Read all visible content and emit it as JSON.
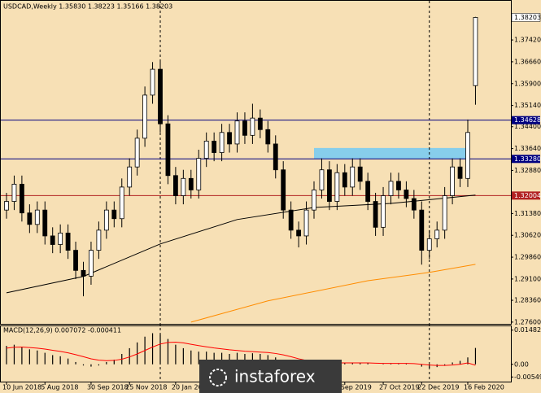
{
  "chart_data": {
    "type": "candlestick",
    "title": "USDCAD,Weekly  1.35830 1.38223 1.35166 1.38203",
    "ylim": [
      1.2754,
      1.3881
    ],
    "yticks": [
      {
        "value": 1.3742,
        "label": "1.37420"
      },
      {
        "value": 1.3666,
        "label": "1.36660"
      },
      {
        "value": 1.359,
        "label": "1.35900"
      },
      {
        "value": 1.3514,
        "label": "1.35140"
      },
      {
        "value": 1.344,
        "label": "1.34400"
      },
      {
        "value": 1.3364,
        "label": "1.33640"
      },
      {
        "value": 1.3288,
        "label": "1.32880"
      },
      {
        "value": 1.3138,
        "label": "1.31380"
      },
      {
        "value": 1.3062,
        "label": "1.30620"
      },
      {
        "value": 1.2986,
        "label": "1.29860"
      },
      {
        "value": 1.291,
        "label": "1.29100"
      },
      {
        "value": 1.2836,
        "label": "1.28360"
      },
      {
        "value": 1.276,
        "label": "1.27600"
      }
    ],
    "categories": [
      "10 Jun 2018",
      null,
      null,
      null,
      null,
      "5 Aug 2018",
      null,
      null,
      null,
      null,
      null,
      "30 Sep 2018",
      null,
      null,
      null,
      null,
      "25 Nov 2018",
      null,
      null,
      null,
      null,
      null,
      "20 Jan 201",
      null,
      null,
      null,
      null,
      null,
      null,
      null,
      null,
      null,
      null,
      null,
      null,
      null,
      null,
      null,
      null,
      null,
      null,
      null,
      null,
      null,
      "Sep 2019",
      null,
      null,
      null,
      null,
      "27 Oct 2019",
      null,
      null,
      null,
      null,
      "22 Dec 2019",
      null,
      null,
      null,
      null,
      null,
      "16 Feb 2020",
      null
    ],
    "ohlc": [
      [
        1.315,
        1.321,
        1.312,
        1.318
      ],
      [
        1.318,
        1.327,
        1.315,
        1.324
      ],
      [
        1.324,
        1.327,
        1.311,
        1.314
      ],
      [
        1.314,
        1.317,
        1.307,
        1.31
      ],
      [
        1.31,
        1.318,
        1.307,
        1.315
      ],
      [
        1.315,
        1.318,
        1.303,
        1.306
      ],
      [
        1.306,
        1.309,
        1.3,
        1.303
      ],
      [
        1.303,
        1.31,
        1.3,
        1.307
      ],
      [
        1.307,
        1.31,
        1.298,
        1.301
      ],
      [
        1.301,
        1.304,
        1.291,
        1.294
      ],
      [
        1.294,
        1.297,
        1.285,
        1.292
      ],
      [
        1.292,
        1.304,
        1.289,
        1.301
      ],
      [
        1.301,
        1.311,
        1.298,
        1.308
      ],
      [
        1.308,
        1.318,
        1.305,
        1.315
      ],
      [
        1.315,
        1.318,
        1.309,
        1.312
      ],
      [
        1.312,
        1.326,
        1.309,
        1.323
      ],
      [
        1.323,
        1.333,
        1.32,
        1.33
      ],
      [
        1.33,
        1.343,
        1.327,
        1.34
      ],
      [
        1.34,
        1.358,
        1.337,
        1.355
      ],
      [
        1.355,
        1.3665,
        1.352,
        1.364
      ],
      [
        1.364,
        1.367,
        1.342,
        1.345
      ],
      [
        1.345,
        1.348,
        1.324,
        1.327
      ],
      [
        1.327,
        1.33,
        1.317,
        1.32
      ],
      [
        1.32,
        1.329,
        1.317,
        1.326
      ],
      [
        1.326,
        1.329,
        1.319,
        1.322
      ],
      [
        1.322,
        1.336,
        1.319,
        1.333
      ],
      [
        1.333,
        1.342,
        1.33,
        1.339
      ],
      [
        1.339,
        1.342,
        1.332,
        1.335
      ],
      [
        1.335,
        1.345,
        1.332,
        1.342
      ],
      [
        1.342,
        1.345,
        1.335,
        1.338
      ],
      [
        1.338,
        1.349,
        1.335,
        1.346
      ],
      [
        1.346,
        1.349,
        1.338,
        1.341
      ],
      [
        1.341,
        1.352,
        1.338,
        1.347
      ],
      [
        1.347,
        1.35,
        1.34,
        1.343
      ],
      [
        1.343,
        1.346,
        1.335,
        1.338
      ],
      [
        1.338,
        1.341,
        1.326,
        1.329
      ],
      [
        1.329,
        1.332,
        1.312,
        1.315
      ],
      [
        1.315,
        1.318,
        1.305,
        1.308
      ],
      [
        1.308,
        1.311,
        1.302,
        1.306
      ],
      [
        1.306,
        1.318,
        1.303,
        1.315
      ],
      [
        1.315,
        1.325,
        1.312,
        1.322
      ],
      [
        1.322,
        1.333,
        1.319,
        1.329
      ],
      [
        1.329,
        1.332,
        1.315,
        1.318
      ],
      [
        1.318,
        1.331,
        1.315,
        1.328
      ],
      [
        1.328,
        1.331,
        1.32,
        1.323
      ],
      [
        1.323,
        1.333,
        1.32,
        1.33
      ],
      [
        1.33,
        1.333,
        1.322,
        1.325
      ],
      [
        1.325,
        1.328,
        1.315,
        1.318
      ],
      [
        1.318,
        1.321,
        1.306,
        1.309
      ],
      [
        1.309,
        1.323,
        1.306,
        1.32
      ],
      [
        1.32,
        1.328,
        1.317,
        1.325
      ],
      [
        1.325,
        1.328,
        1.319,
        1.322
      ],
      [
        1.322,
        1.325,
        1.316,
        1.319
      ],
      [
        1.319,
        1.322,
        1.312,
        1.315
      ],
      [
        1.315,
        1.318,
        1.296,
        1.301
      ],
      [
        1.301,
        1.308,
        1.298,
        1.305
      ],
      [
        1.305,
        1.311,
        1.302,
        1.308
      ],
      [
        1.308,
        1.323,
        1.305,
        1.32
      ],
      [
        1.32,
        1.333,
        1.317,
        1.33
      ],
      [
        1.33,
        1.333,
        1.323,
        1.326
      ],
      [
        1.326,
        1.3465,
        1.323,
        1.342
      ],
      [
        1.3583,
        1.38223,
        1.35166,
        1.38203
      ]
    ],
    "lines": [
      {
        "color": "#000000",
        "x": [
          0,
          10,
          20,
          30,
          40,
          50,
          61
        ],
        "values": [
          1.2862,
          1.2919,
          1.3032,
          1.3117,
          1.3159,
          1.3173,
          1.3202
        ]
      },
      {
        "color": "#ff8c00",
        "x": [
          24,
          34,
          47,
          55,
          61
        ],
        "values": [
          1.276,
          1.2834,
          1.2904,
          1.2933,
          1.2961
        ]
      }
    ],
    "levels": [
      {
        "value": 1.34628,
        "color": "#000080"
      },
      {
        "value": 1.3328,
        "label": "1.33280",
        "color": "#000080"
      },
      {
        "value": 1.32004,
        "color": "#b22222"
      }
    ],
    "zone": {
      "x": [
        40,
        60
      ],
      "range": [
        1.3328,
        1.3366
      ],
      "color": "#87ceeb"
    },
    "vlines": [
      20,
      55
    ],
    "macd": {
      "label": "MACD(12,26,9) 0.007072 -0.000411",
      "ylim": [
        -0.0075,
        0.0165
      ],
      "yticks": [
        0.014828,
        {
          "value": 0,
          "label": "0.00"
        },
        -0.005499
      ],
      "histogram": [
        0.008,
        0.0085,
        0.0075,
        0.0065,
        0.006,
        0.005,
        0.004,
        0.0035,
        0.0025,
        0.001,
        -0.0005,
        -0.001,
        -0.0005,
        0.001,
        0.002,
        0.0045,
        0.007,
        0.0095,
        0.012,
        0.0135,
        0.013,
        0.011,
        0.0085,
        0.007,
        0.006,
        0.0055,
        0.0055,
        0.005,
        0.005,
        0.0045,
        0.005,
        0.0045,
        0.0048,
        0.0045,
        0.004,
        0.003,
        0.0015,
        0,
        -0.001,
        -0.001,
        -0.0005,
        0,
        0,
        0.0005,
        0.0005,
        0.0008,
        0.0008,
        0.0005,
        0,
        0.0002,
        0.0004,
        0.0004,
        0.0003,
        0,
        -0.001,
        -0.0015,
        -0.0012,
        -0.0005,
        0.0008,
        0.0015,
        0.003,
        0.0071
      ],
      "signal": [
        0.007,
        0.0074,
        0.0075,
        0.0073,
        0.007,
        0.0066,
        0.0061,
        0.0056,
        0.005,
        0.0042,
        0.0033,
        0.0024,
        0.0018,
        0.0016,
        0.0017,
        0.0022,
        0.0032,
        0.0045,
        0.006,
        0.0075,
        0.0088,
        0.0095,
        0.0096,
        0.0093,
        0.0087,
        0.0081,
        0.0076,
        0.0071,
        0.0067,
        0.0063,
        0.006,
        0.0057,
        0.0055,
        0.0053,
        0.0051,
        0.0047,
        0.0041,
        0.0033,
        0.0024,
        0.0017,
        0.0012,
        0.0009,
        0.0007,
        0.0006,
        0.0006,
        0.0006,
        0.0006,
        0.0006,
        0.0005,
        0.0004,
        0.0004,
        0.0004,
        0.0004,
        0.0003,
        0,
        -0.0003,
        -0.0005,
        -0.0005,
        -0.0003,
        0,
        0.0006,
        -0.0004
      ],
      "signal_color": "#ff0000"
    },
    "watermark": "instaforex"
  }
}
